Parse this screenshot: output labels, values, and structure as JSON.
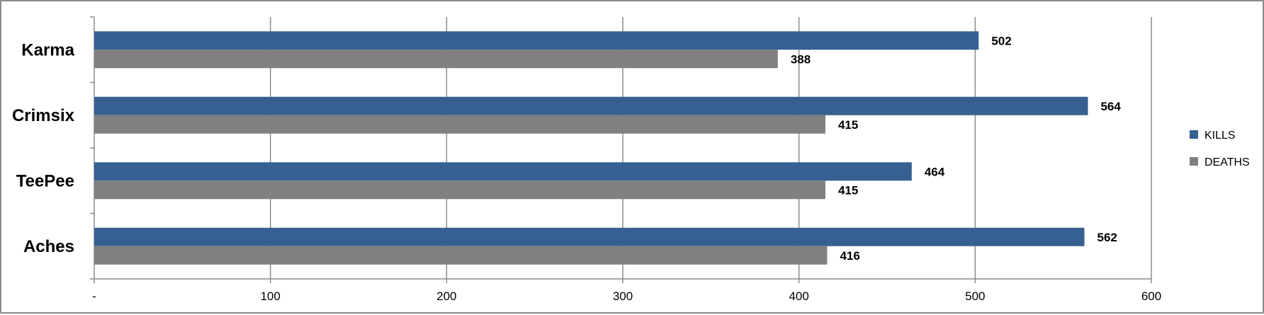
{
  "chart_data": {
    "type": "bar",
    "orientation": "horizontal",
    "categories": [
      "Karma",
      "Crimsix",
      "TeePee",
      "Aches"
    ],
    "series": [
      {
        "name": "KILLS",
        "values": [
          502,
          564,
          464,
          562
        ],
        "color": "#376092"
      },
      {
        "name": "DEATHS",
        "values": [
          388,
          415,
          415,
          416
        ],
        "color": "#808080"
      }
    ],
    "xlim": [
      0,
      600
    ],
    "xticks": [
      {
        "value": 0,
        "label": "-"
      },
      {
        "value": 100,
        "label": "100"
      },
      {
        "value": 200,
        "label": "200"
      },
      {
        "value": 300,
        "label": "300"
      },
      {
        "value": 400,
        "label": "400"
      },
      {
        "value": 500,
        "label": "500"
      },
      {
        "value": 600,
        "label": "600"
      }
    ],
    "grid": true,
    "legend": "right",
    "data_labels": true,
    "title": "",
    "xlabel": "",
    "ylabel": ""
  }
}
